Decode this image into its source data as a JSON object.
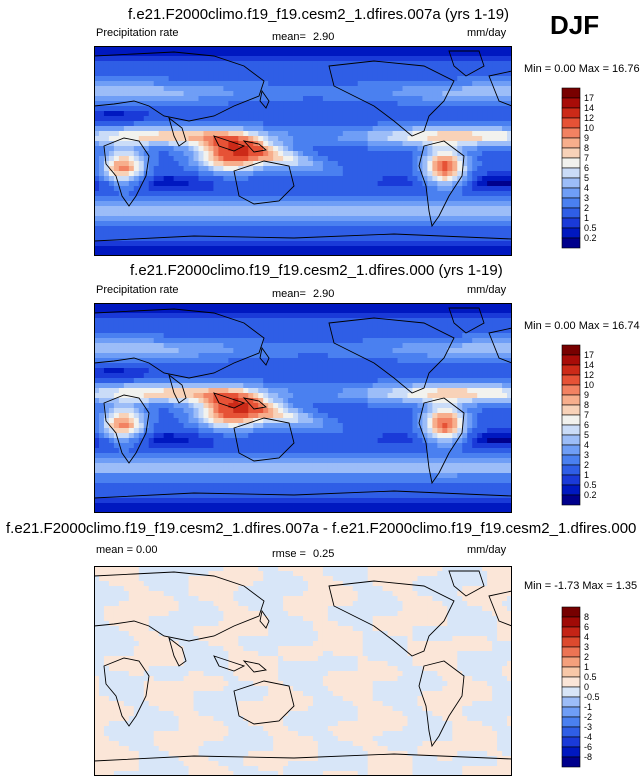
{
  "season": "DJF",
  "chart_data": [
    {
      "type": "heatmap",
      "title": "f.e21.F2000climo.f19_f19.cesm2_1.dfires.007a (yrs 1-19)",
      "left_label": "Precipitation rate",
      "mean_label": "mean=",
      "mean": "2.90",
      "units": "mm/day",
      "minmax": "Min =  0.00 Max = 16.76",
      "min": 0.0,
      "max": 16.76,
      "levels": [
        "0.2",
        "0.5",
        "1",
        "2",
        "3",
        "4",
        "5",
        "6",
        "7",
        "8",
        "9",
        "10",
        "12",
        "14",
        "17"
      ],
      "colors": [
        "#00008c",
        "#0018c0",
        "#1a3ad8",
        "#2f5ee6",
        "#4a80f0",
        "#6f9ef6",
        "#9cbdf8",
        "#cadcf8",
        "#f2f2ee",
        "#f8d2b8",
        "#f7ae8c",
        "#f28262",
        "#e65236",
        "#cc2a18",
        "#a80c08",
        "#780000"
      ]
    },
    {
      "type": "heatmap",
      "title": "f.e21.F2000climo.f19_f19.cesm2_1.dfires.000 (yrs 1-19)",
      "left_label": "Precipitation rate",
      "mean_label": "mean=",
      "mean": "2.90",
      "units": "mm/day",
      "minmax": "Min =  0.00 Max = 16.74",
      "min": 0.0,
      "max": 16.74,
      "levels": [
        "0.2",
        "0.5",
        "1",
        "2",
        "3",
        "4",
        "5",
        "6",
        "7",
        "8",
        "9",
        "10",
        "12",
        "14",
        "17"
      ],
      "colors": [
        "#00008c",
        "#0018c0",
        "#1a3ad8",
        "#2f5ee6",
        "#4a80f0",
        "#6f9ef6",
        "#9cbdf8",
        "#cadcf8",
        "#f2f2ee",
        "#f8d2b8",
        "#f7ae8c",
        "#f28262",
        "#e65236",
        "#cc2a18",
        "#a80c08",
        "#780000"
      ]
    },
    {
      "type": "heatmap",
      "title": "f.e21.F2000climo.f19_f19.cesm2_1.dfires.007a - f.e21.F2000climo.f19_f19.cesm2_1.dfires.000",
      "left_label": "mean =   0.00",
      "mean_label": "rmse =",
      "mean": "0.25",
      "units": "mm/day",
      "minmax": "Min = -1.73 Max =  1.35",
      "min": -1.73,
      "max": 1.35,
      "levels": [
        "-8",
        "-6",
        "-4",
        "-3",
        "-2",
        "-1",
        "-0.5",
        "0",
        "0.5",
        "1",
        "2",
        "3",
        "4",
        "6",
        "8"
      ],
      "colors": [
        "#00008c",
        "#0018c0",
        "#1a3ad8",
        "#2f5ee6",
        "#4a80f0",
        "#6f9ef6",
        "#9cbdf8",
        "#d8e6f8",
        "#fbe6d8",
        "#f8c8a8",
        "#f4a07c",
        "#ec7454",
        "#dc4a2e",
        "#c42416",
        "#a00a06",
        "#760000"
      ]
    }
  ]
}
